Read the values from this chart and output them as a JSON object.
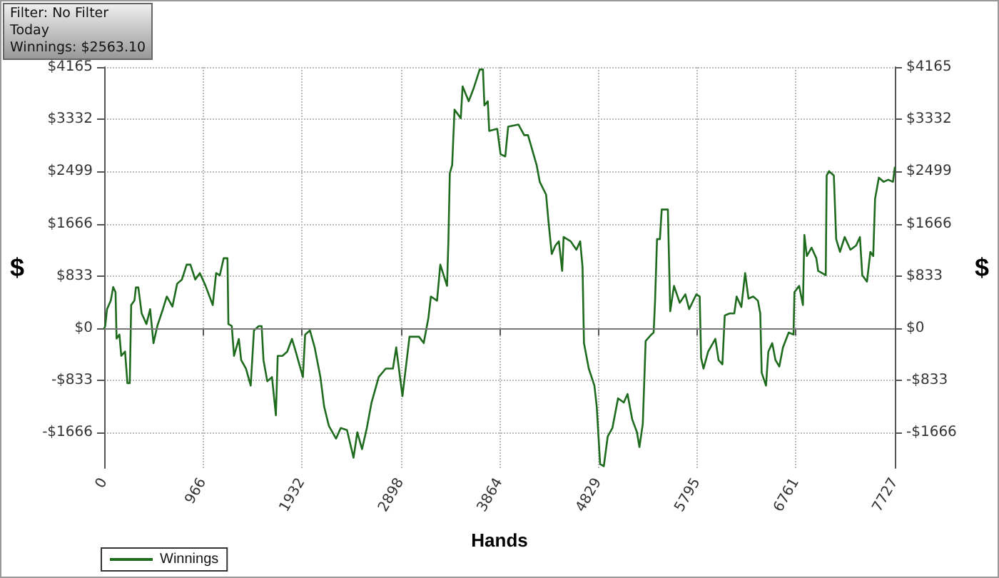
{
  "chart_data": {
    "type": "line",
    "xlabel": "Hands",
    "ylabel": "$",
    "y2label": "$",
    "annotations": [
      "Filter: No Filter",
      "Today",
      "Winnings: $2563.10"
    ],
    "x": [
      0,
      10,
      28,
      65,
      88,
      111,
      121,
      149,
      167,
      204,
      227,
      250,
      264,
      296,
      310,
      334,
      366,
      413,
      449,
      482,
      519,
      574,
      612,
      667,
      713,
      760,
      806,
      843,
      890,
      935,
      991,
      1061,
      1094,
      1130,
      1168,
      1205,
      1214,
      1247,
      1269,
      1316,
      1339,
      1386,
      1432,
      1464,
      1511,
      1539,
      1557,
      1594,
      1640,
      1678,
      1696,
      1742,
      1789,
      1835,
      1872,
      1942,
      1964,
      2011,
      2057,
      2113,
      2150,
      2196,
      2266,
      2312,
      2373,
      2437,
      2474,
      2520,
      2567,
      2613,
      2683,
      2752,
      2822,
      2854,
      2915,
      2984,
      3077,
      3123,
      3169,
      3193,
      3253,
      3285,
      3351,
      3364,
      3378,
      3401,
      3424,
      3485,
      3503,
      3563,
      3610,
      3670,
      3702,
      3716,
      3749,
      3763,
      3841,
      3874,
      3920,
      3948,
      4049,
      4105,
      4142,
      4226,
      4257,
      4319,
      4341,
      4374,
      4410,
      4444,
      4476,
      4490,
      4559,
      4615,
      4652,
      4675,
      4689,
      4736,
      4791,
      4814,
      4847,
      4883,
      4921,
      4967,
      5022,
      5078,
      5115,
      5161,
      5207,
      5231,
      5264,
      5292,
      5347,
      5370,
      5384,
      5403,
      5431,
      5449,
      5509,
      5532,
      5569,
      5625,
      5680,
      5717,
      5787,
      5820,
      5834,
      5857,
      5903,
      5973,
      6005,
      6042,
      6065,
      6112,
      6158,
      6181,
      6227,
      6264,
      6297,
      6343,
      6389,
      6412,
      6426,
      6468,
      6491,
      6529,
      6561,
      6598,
      6634,
      6690,
      6737,
      6746,
      6792,
      6829,
      6843,
      6867,
      6913,
      6960,
      6978,
      7052,
      7061,
      7085,
      7131,
      7154,
      7191,
      7237,
      7293,
      7349,
      7386,
      7409,
      7455,
      7488,
      7516,
      7534,
      7571,
      7617,
      7663,
      7709,
      7727
    ],
    "series": [
      {
        "name": "Winnings",
        "color": "#1e6b1e",
        "values": [
          0,
          35,
          305,
          445,
          656,
          575,
          -165,
          -100,
          -440,
          -370,
          -875,
          -875,
          370,
          445,
          650,
          650,
          240,
          67,
          305,
          -237,
          35,
          305,
          507,
          345,
          710,
          778,
          1015,
          1015,
          778,
          880,
          676,
          370,
          880,
          845,
          1117,
          1117,
          67,
          35,
          -440,
          -170,
          -508,
          -643,
          -914,
          -34,
          35,
          35,
          -508,
          -846,
          -778,
          -1387,
          -440,
          -440,
          -372,
          -170,
          -372,
          -778,
          -101,
          -34,
          -305,
          -778,
          -1252,
          -1557,
          -1760,
          -1590,
          -1624,
          -2064,
          -1658,
          -1928,
          -1590,
          -1184,
          -778,
          -643,
          -643,
          -305,
          -1083,
          -135,
          -135,
          -237,
          169,
          507,
          440,
          1015,
          676,
          1387,
          2471,
          2605,
          3486,
          3350,
          3857,
          3620,
          3823,
          4127,
          4127,
          3553,
          3620,
          3147,
          3181,
          2775,
          2740,
          3214,
          3248,
          3080,
          3080,
          2605,
          2335,
          2131,
          1725,
          1184,
          1320,
          1387,
          914,
          1455,
          1387,
          1252,
          1387,
          980,
          -237,
          -643,
          -914,
          -1252,
          -2166,
          -2199,
          -1726,
          -1590,
          -1117,
          -1184,
          -1049,
          -1455,
          -1658,
          -1894,
          -1523,
          -203,
          -101,
          -68,
          440,
          1421,
          1421,
          1894,
          1894,
          270,
          676,
          406,
          541,
          305,
          541,
          507,
          -473,
          -643,
          -372,
          -170,
          -508,
          -575,
          203,
          237,
          237,
          507,
          338,
          880,
          473,
          507,
          440,
          237,
          -710,
          -914,
          -372,
          -237,
          -508,
          -609,
          -305,
          -68,
          -101,
          575,
          676,
          370,
          1488,
          1151,
          1286,
          1117,
          914,
          846,
          2436,
          2504,
          2436,
          1421,
          1218,
          1455,
          1252,
          1320,
          1455,
          846,
          744,
          1218,
          1151,
          2064,
          2402,
          2335,
          2369,
          2335,
          2563
        ]
      }
    ],
    "xlim": [
      0,
      7727
    ],
    "xticks": [
      0,
      966,
      1932,
      2898,
      3864,
      4829,
      5795,
      6761,
      7727
    ],
    "ylim": [
      -2230,
      4165
    ],
    "yticks": [
      {
        "value": -1666,
        "label": "-$1666"
      },
      {
        "value": -833,
        "label": "-$833"
      },
      {
        "value": 0,
        "label": "$0"
      },
      {
        "value": 833,
        "label": "$833"
      },
      {
        "value": 1666,
        "label": "$1666"
      },
      {
        "value": 2499,
        "label": "$2499"
      },
      {
        "value": 3332,
        "label": "$3332"
      },
      {
        "value": 4165,
        "label": "$4165"
      }
    ],
    "y2lim": [
      -2230,
      4165
    ],
    "y2ticks": [
      {
        "value": -1666,
        "label": "-$1666"
      },
      {
        "value": -833,
        "label": "-$833"
      },
      {
        "value": 0,
        "label": "$0"
      },
      {
        "value": 833,
        "label": "$833"
      },
      {
        "value": 1666,
        "label": "$1666"
      },
      {
        "value": 2499,
        "label": "$2499"
      },
      {
        "value": 3332,
        "label": "$3332"
      },
      {
        "value": 4165,
        "label": "$4165"
      }
    ],
    "ref_lines": [
      {
        "axis": "y",
        "value": 0,
        "color": "#777777"
      }
    ],
    "grid": true,
    "legend": "bottom left",
    "marker": "none",
    "line_style": "solid"
  }
}
